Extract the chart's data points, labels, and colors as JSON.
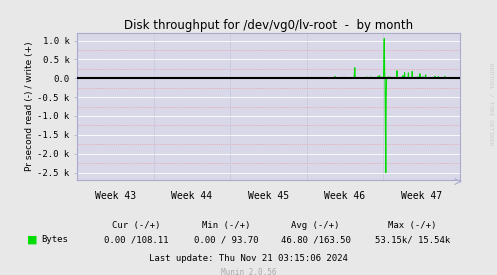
{
  "title": "Disk throughput for /dev/vg0/lv-root  -  by month",
  "ylabel": "Pr second read (-) / write (+)",
  "bg_color": "#e8e8e8",
  "plot_bg_color": "#d8d8e8",
  "line_color": "#00dd00",
  "zero_line_color": "#000000",
  "axis_color": "#aaaacc",
  "ylim": [
    -2700,
    1200
  ],
  "yticks": [
    -2500,
    -2000,
    -1500,
    -1000,
    -500,
    0,
    500,
    1000
  ],
  "ytick_labels": [
    "-2.5 k",
    "-2.0 k",
    "-1.5 k",
    "-1.0 k",
    "-0.5 k",
    "0.0",
    "0.5 k",
    "1.0 k"
  ],
  "week_labels": [
    "Week 43",
    "Week 44",
    "Week 45",
    "Week 46",
    "Week 47"
  ],
  "footer_text": "Last update: Thu Nov 21 03:15:06 2024",
  "munin_text": "Munin 2.0.56",
  "legend_label": "Bytes",
  "cur_text": "Cur (-/+)",
  "cur_val": "0.00 /108.11",
  "min_text": "Min (-/+)",
  "min_val": "0.00 / 93.70",
  "avg_text": "Avg (-/+)",
  "avg_val": "46.80 /163.50",
  "max_text": "Max (-/+)",
  "max_val": "53.15k/ 15.54k",
  "rrdtool_text": "RRDTOOL / TOBI OETIKER",
  "n_points": 1000
}
